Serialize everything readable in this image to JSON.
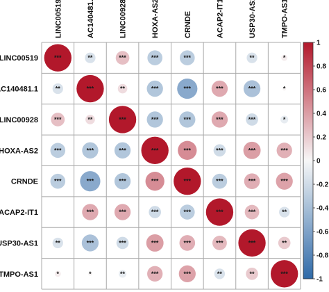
{
  "chart_data": {
    "type": "heatmap",
    "subtype": "correlation-circle-matrix",
    "title": "",
    "variables": [
      "LINC00519",
      "AC140481.1",
      "LINC00928",
      "HOXA-AS2",
      "CRNDE",
      "ACAP2-IT1",
      "USP30-AS1",
      "TMPO-AS1"
    ],
    "matrix": [
      [
        1.0,
        -0.15,
        0.25,
        -0.3,
        -0.3,
        0.0,
        -0.15,
        0.05
      ],
      [
        -0.15,
        1.0,
        0.12,
        -0.35,
        -0.55,
        0.35,
        -0.38,
        0.02
      ],
      [
        0.25,
        0.12,
        1.0,
        -0.35,
        -0.35,
        0.35,
        -0.2,
        -0.08
      ],
      [
        -0.3,
        -0.35,
        -0.35,
        1.0,
        0.48,
        -0.2,
        0.4,
        0.32
      ],
      [
        -0.3,
        -0.55,
        -0.35,
        0.48,
        1.0,
        -0.3,
        0.33,
        0.38
      ],
      [
        0.0,
        0.35,
        0.35,
        -0.2,
        -0.3,
        1.0,
        0.28,
        -0.15
      ],
      [
        -0.15,
        -0.38,
        -0.2,
        0.4,
        0.33,
        0.28,
        1.0,
        0.2
      ],
      [
        0.05,
        0.02,
        -0.08,
        0.32,
        0.38,
        -0.15,
        0.2,
        1.0
      ]
    ],
    "significance": [
      [
        "***",
        "**",
        "***",
        "***",
        "***",
        "",
        "**",
        "*"
      ],
      [
        "**",
        "***",
        "**",
        "***",
        "***",
        "***",
        "***",
        "*"
      ],
      [
        "***",
        "**",
        "***",
        "***",
        "***",
        "***",
        "***",
        "*"
      ],
      [
        "***",
        "***",
        "***",
        "***",
        "***",
        "***",
        "***",
        "***"
      ],
      [
        "***",
        "***",
        "***",
        "***",
        "***",
        "***",
        "***",
        "***"
      ],
      [
        "",
        "***",
        "***",
        "***",
        "***",
        "***",
        "***",
        "**"
      ],
      [
        "**",
        "***",
        "***",
        "***",
        "***",
        "***",
        "***",
        "**"
      ],
      [
        "*",
        "*",
        "**",
        "***",
        "***",
        "**",
        "**",
        "***"
      ]
    ],
    "colorbar": {
      "range": [
        -1,
        1
      ],
      "ticks": [
        "1",
        "0.8",
        "0.6",
        "0.4",
        "0.2",
        "0",
        "-0.2",
        "-0.4",
        "-0.6",
        "-0.8",
        "-1"
      ],
      "colors": {
        "negative": "#2f6aa8",
        "zero": "#f7f7f7",
        "positive": "#b2182b"
      }
    },
    "grid": true
  }
}
